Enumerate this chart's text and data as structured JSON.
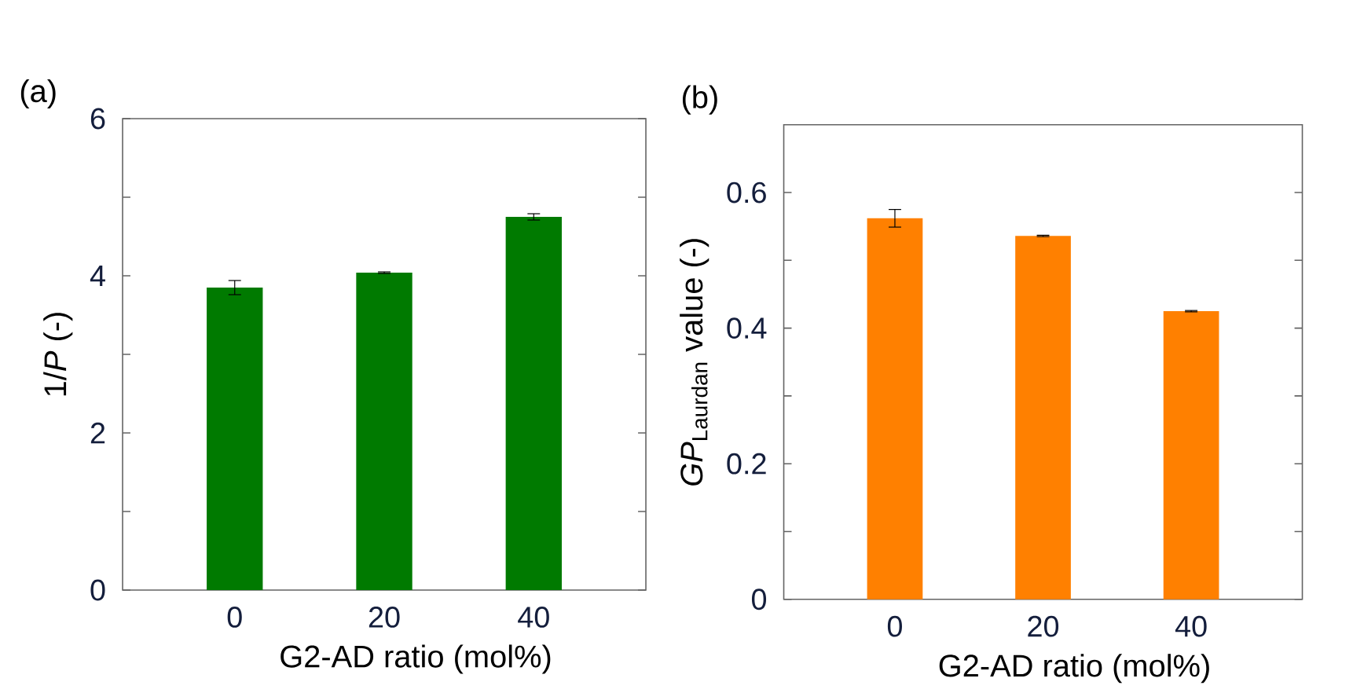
{
  "chart_data": [
    {
      "type": "bar",
      "categories": [
        "0",
        "20",
        "40"
      ],
      "values": [
        3.85,
        4.04,
        4.75
      ],
      "errors": [
        0.09,
        0.01,
        0.04
      ],
      "color": "#007a00",
      "xlabel": "G2-AD ratio (mol%)",
      "ylabel": "1/*P* (-)",
      "ylim": [
        0,
        6
      ],
      "yticks": [
        0,
        {
          "value": 1,
          "label": null
        },
        2,
        {
          "value": 3,
          "label": null
        },
        4,
        {
          "value": 5,
          "label": null
        },
        6
      ],
      "annotations": [
        "(a)"
      ]
    },
    {
      "type": "bar",
      "categories": [
        "0",
        "20",
        "40"
      ],
      "values": [
        0.562,
        0.536,
        0.425
      ],
      "errors": [
        0.013,
        0.001,
        0.001
      ],
      "color": "#ff8000",
      "xlabel": "G2-AD ratio (mol%)",
      "ylabel": "*GP*$_{Laurdan}$ value  (-)",
      "ylim": [
        0,
        0.7
      ],
      "yticks": [
        0,
        {
          "value": 0.1,
          "label": null
        },
        0.2,
        {
          "value": 0.3,
          "label": null
        },
        0.4,
        {
          "value": 0.5,
          "label": null
        },
        0.6
      ],
      "annotations": [
        "(b)"
      ]
    }
  ]
}
